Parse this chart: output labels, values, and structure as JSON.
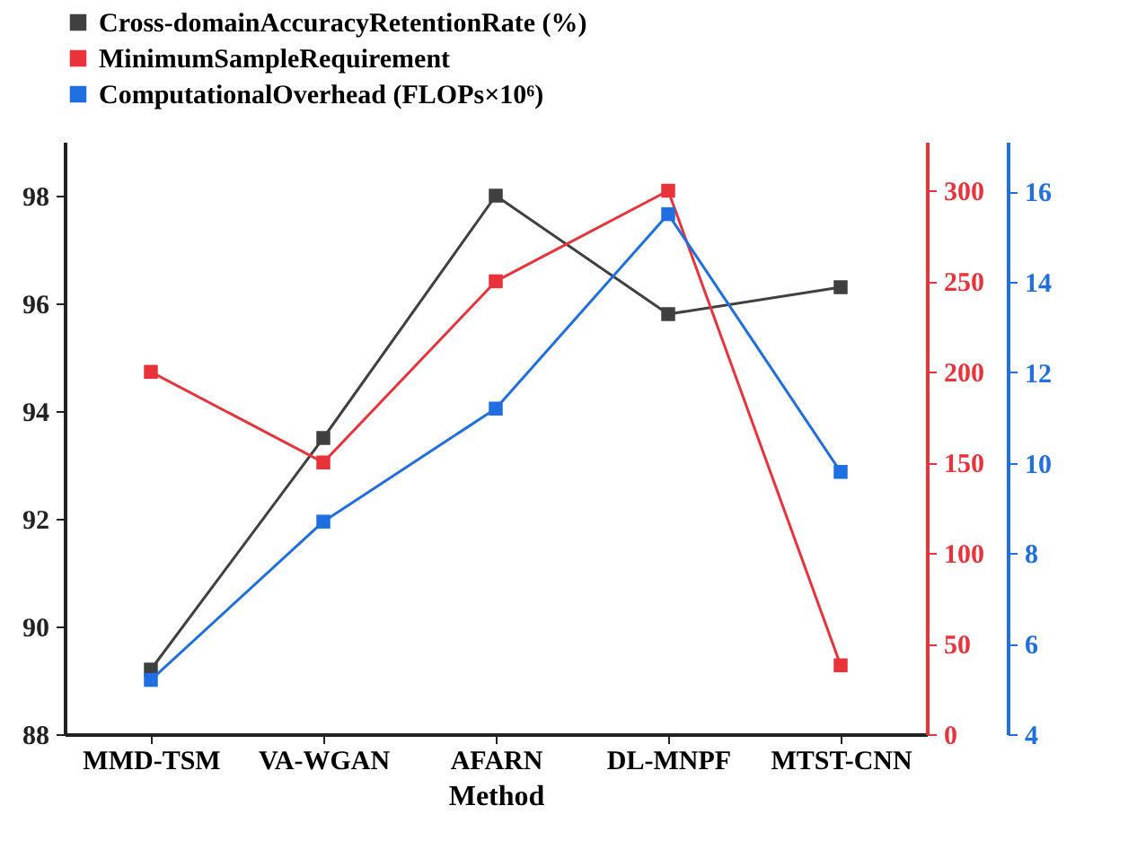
{
  "chart_data": {
    "type": "line",
    "xlabel": "Method",
    "categories": [
      "MMD-TSM",
      "VA-WGAN",
      "AFARN",
      "DL-MNPF",
      "MTST-CNN"
    ],
    "series": [
      {
        "name": "Cross-domainAccuracyRetentionRate (%)",
        "color": "#404040",
        "axis": "y",
        "values": [
          89.2,
          93.5,
          98.0,
          95.8,
          96.3
        ]
      },
      {
        "name": "MinimumSampleRequirement",
        "color": "#e8333a",
        "axis": "y2",
        "values": [
          200,
          150,
          250,
          300,
          38
        ]
      },
      {
        "name": "ComputationalOverhead (FLOPs×10⁶)",
        "color": "#1f6fe0",
        "axis": "y3",
        "values": [
          5.2,
          8.7,
          11.2,
          15.5,
          9.8
        ]
      }
    ],
    "ylim": [
      88,
      99
    ],
    "yticks": [
      88,
      90,
      92,
      94,
      96,
      98
    ],
    "y2lim": [
      0,
      327
    ],
    "y2ticks": [
      0,
      50,
      100,
      150,
      200,
      250,
      300
    ],
    "y3lim": [
      4,
      17.1
    ],
    "y3ticks": [
      4,
      6,
      8,
      10,
      12,
      14,
      16
    ],
    "marker": "square",
    "line_style": "solid",
    "grid": false,
    "legend": "top"
  }
}
